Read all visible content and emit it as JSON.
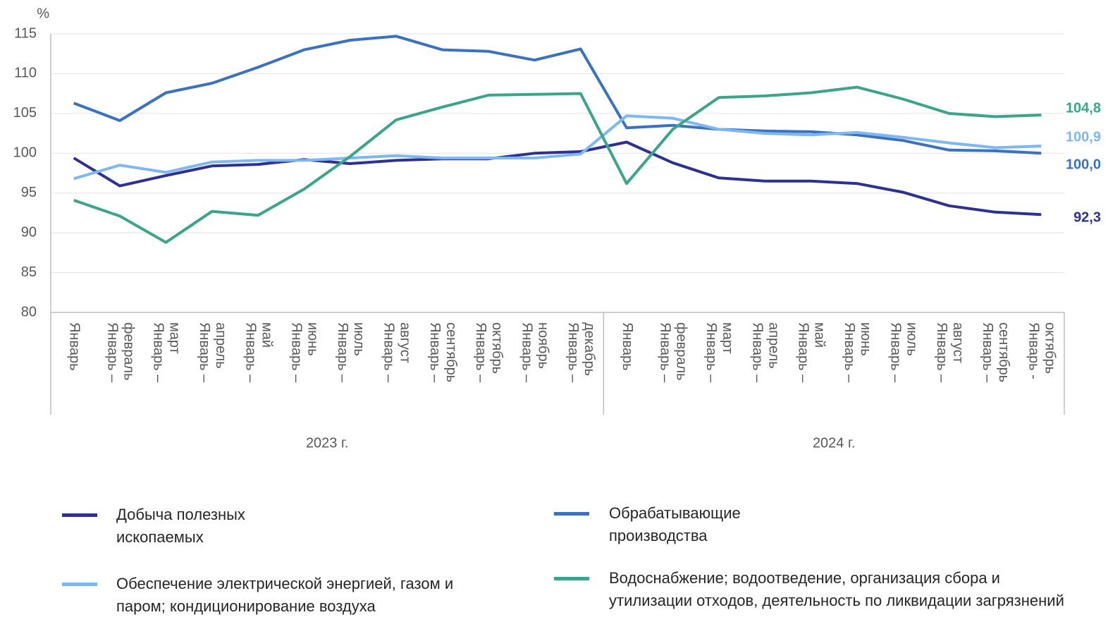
{
  "chart_data": {
    "type": "line",
    "y_unit": "%",
    "ylim": [
      80,
      115
    ],
    "yticks": [
      80,
      85,
      90,
      95,
      100,
      105,
      110,
      115
    ],
    "grid": true,
    "groups": [
      {
        "label": "2023 г.",
        "categories": [
          [
            "Январь"
          ],
          [
            "Январь –",
            "февраль"
          ],
          [
            "Январь –",
            "март"
          ],
          [
            "Январь –",
            "апрель"
          ],
          [
            "Январь –",
            "май"
          ],
          [
            "Январь –",
            "июнь"
          ],
          [
            "Январь –",
            "июль"
          ],
          [
            "Январь –",
            "август"
          ],
          [
            "Январь –",
            "сентябрь"
          ],
          [
            "Январь –",
            "октябрь"
          ],
          [
            "Январь –",
            "ноябрь"
          ],
          [
            "Январь –",
            "декабрь"
          ]
        ]
      },
      {
        "label": "2024 г.",
        "categories": [
          [
            "Январь"
          ],
          [
            "Январь –",
            "февраль"
          ],
          [
            "Январь –",
            "март"
          ],
          [
            "Январь –",
            "апрель"
          ],
          [
            "Январь –",
            "май"
          ],
          [
            "Январь –",
            "июнь"
          ],
          [
            "Январь –",
            "июль"
          ],
          [
            "Январь –",
            "август"
          ],
          [
            "Январь –",
            "сентябрь"
          ],
          [
            "Январь -",
            "октябрь"
          ]
        ]
      }
    ],
    "legend": "bottom",
    "series": [
      {
        "name": "Добыча полезных ископаемых",
        "color": "#2e3192",
        "end_label": "92,3",
        "values": [
          99.4,
          95.9,
          97.2,
          98.4,
          98.6,
          99.2,
          98.7,
          99.1,
          99.3,
          99.3,
          100.0,
          100.2,
          101.4,
          98.8,
          96.9,
          96.5,
          96.5,
          96.2,
          95.1,
          93.4,
          92.6,
          92.3
        ]
      },
      {
        "name": "Обрабатывающие производства",
        "color": "#3a72c0",
        "end_label": "100,0",
        "values": [
          106.3,
          104.1,
          107.6,
          108.8,
          110.8,
          113.0,
          114.2,
          114.7,
          113.0,
          112.8,
          111.7,
          113.1,
          103.2,
          103.5,
          103.0,
          102.8,
          102.7,
          102.3,
          101.6,
          100.4,
          100.3,
          100.0
        ]
      },
      {
        "name": "Обеспечение электрической энергией, газом и паром; кондиционирование воздуха",
        "color": "#7fb8f0",
        "end_label": "100,9",
        "values": [
          96.8,
          98.5,
          97.6,
          98.9,
          99.1,
          99.1,
          99.4,
          99.7,
          99.4,
          99.4,
          99.4,
          99.9,
          104.7,
          104.4,
          103.0,
          102.5,
          102.3,
          102.6,
          102.0,
          101.3,
          100.7,
          100.9
        ]
      },
      {
        "name": "Водоснабжение; водоотведение, организация  сбора и утилизации отходов, деятельность по ликвидации загрязнений",
        "color": "#3ba58b",
        "end_label": "104,8",
        "values": [
          94.1,
          92.1,
          88.8,
          92.7,
          92.2,
          95.5,
          99.6,
          104.2,
          105.8,
          107.3,
          107.4,
          107.5,
          96.2,
          103.0,
          107.0,
          107.2,
          107.6,
          108.3,
          106.8,
          105.0,
          104.6,
          104.8
        ]
      }
    ]
  }
}
